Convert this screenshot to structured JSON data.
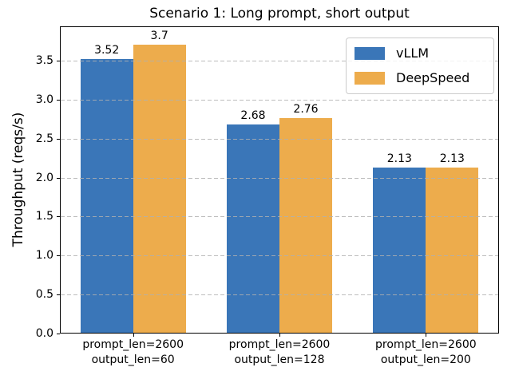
{
  "chart_data": {
    "type": "bar",
    "title": "Scenario 1: Long prompt, short output",
    "ylabel": "Throughput (reqs/s)",
    "xlabel": "",
    "categories": [
      "prompt_len=2600\noutput_len=60",
      "prompt_len=2600\noutput_len=128",
      "prompt_len=2600\noutput_len=200"
    ],
    "series": [
      {
        "name": "vLLM",
        "color": "#3A76B8",
        "values": [
          3.52,
          2.68,
          2.13
        ],
        "value_labels": [
          "3.52",
          "2.68",
          "2.13"
        ]
      },
      {
        "name": "DeepSpeed",
        "color": "#EDAC4C",
        "values": [
          3.7,
          2.76,
          2.13
        ],
        "value_labels": [
          "3.7",
          "2.76",
          "2.13"
        ]
      }
    ],
    "yticks": [
      0.0,
      0.5,
      1.0,
      1.5,
      2.0,
      2.5,
      3.0,
      3.5
    ],
    "ytick_labels": [
      "0.0",
      "0.5",
      "1.0",
      "1.5",
      "2.0",
      "2.5",
      "3.0",
      "3.5"
    ],
    "ylim": [
      0,
      3.94
    ],
    "grid": "horizontal dashed",
    "grid_color": "#B0B0B0",
    "legend_position": "upper right",
    "background_color": "#FFFFFF",
    "spine_color": "#000000"
  }
}
